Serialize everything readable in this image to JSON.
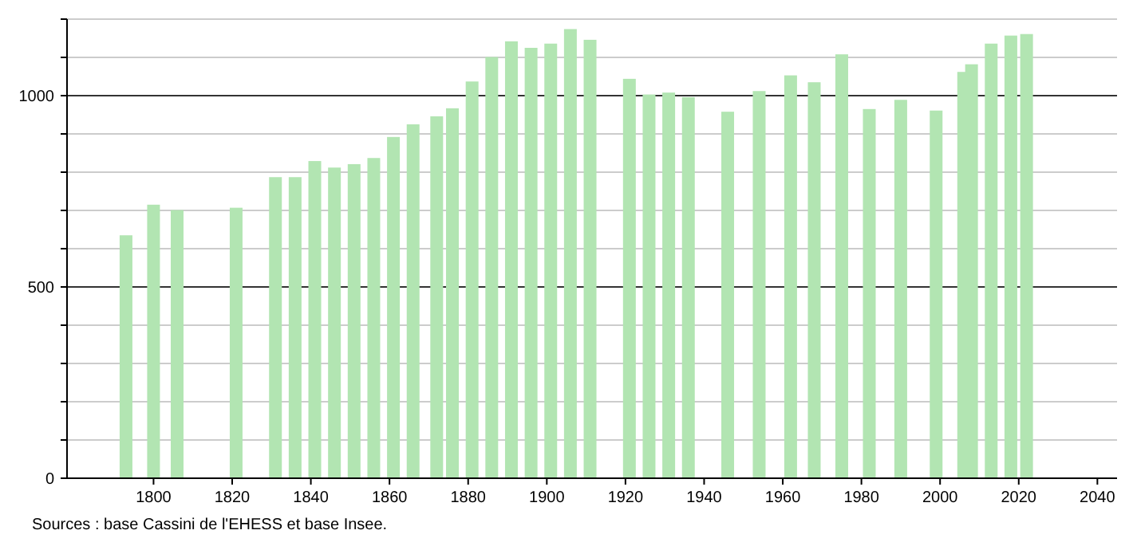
{
  "chart_data": {
    "type": "bar",
    "x": [
      1793,
      1800,
      1806,
      1821,
      1831,
      1836,
      1841,
      1846,
      1851,
      1856,
      1861,
      1866,
      1872,
      1876,
      1881,
      1886,
      1891,
      1896,
      1901,
      1906,
      1911,
      1921,
      1926,
      1931,
      1936,
      1946,
      1954,
      1962,
      1968,
      1975,
      1982,
      1990,
      1999,
      2006,
      2008,
      2013,
      2018,
      2022
    ],
    "values": [
      635,
      715,
      701,
      707,
      787,
      787,
      829,
      812,
      821,
      837,
      892,
      925,
      946,
      967,
      1037,
      1101,
      1142,
      1125,
      1136,
      1174,
      1146,
      1044,
      1003,
      1008,
      996,
      958,
      1012,
      1053,
      1035,
      1108,
      965,
      989,
      961,
      1062,
      1082,
      1136,
      1157,
      1161
    ],
    "color": "#b2e5b2",
    "xlim": [
      1778,
      2045
    ],
    "xticks": [
      1800,
      1820,
      1840,
      1860,
      1880,
      1900,
      1920,
      1940,
      1960,
      1980,
      2000,
      2020,
      2040
    ],
    "ylim": [
      0,
      1200
    ],
    "yticks": [
      0,
      {
        "value": 100,
        "label": null
      },
      {
        "value": 200,
        "label": null
      },
      {
        "value": 300,
        "label": null
      },
      {
        "value": 400,
        "label": null
      },
      500,
      {
        "value": 600,
        "label": null
      },
      {
        "value": 700,
        "label": null
      },
      {
        "value": 800,
        "label": null
      },
      {
        "value": 900,
        "label": null
      },
      1000,
      {
        "value": 1100,
        "label": null
      },
      {
        "value": 1200,
        "label": null
      }
    ],
    "grid": "y",
    "annotations": [
      "Sources : base Cassini de l'EHESS et base Insee."
    ]
  }
}
